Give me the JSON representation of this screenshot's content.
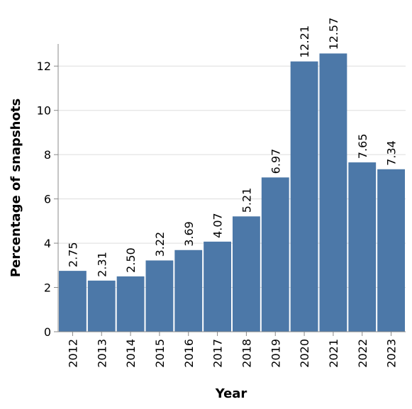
{
  "chart_data": {
    "type": "bar",
    "categories": [
      "2012",
      "2013",
      "2014",
      "2015",
      "2016",
      "2017",
      "2018",
      "2019",
      "2020",
      "2021",
      "2022",
      "2023"
    ],
    "values": [
      2.75,
      2.31,
      2.5,
      3.22,
      3.69,
      4.07,
      5.21,
      6.97,
      12.21,
      12.57,
      7.65,
      7.34
    ],
    "data_labels": [
      "2.75",
      "2.31",
      "2.50",
      "3.22",
      "3.69",
      "4.07",
      "5.21",
      "6.97",
      "12.21",
      "12.57",
      "7.65",
      "7.34"
    ],
    "xlabel": "Year",
    "ylabel": "Percentage of snapshots",
    "ylim": [
      0,
      13
    ],
    "yticks": [
      0,
      2,
      4,
      6,
      8,
      10,
      12
    ],
    "grid": true,
    "bar_color": "#4c78a8"
  }
}
